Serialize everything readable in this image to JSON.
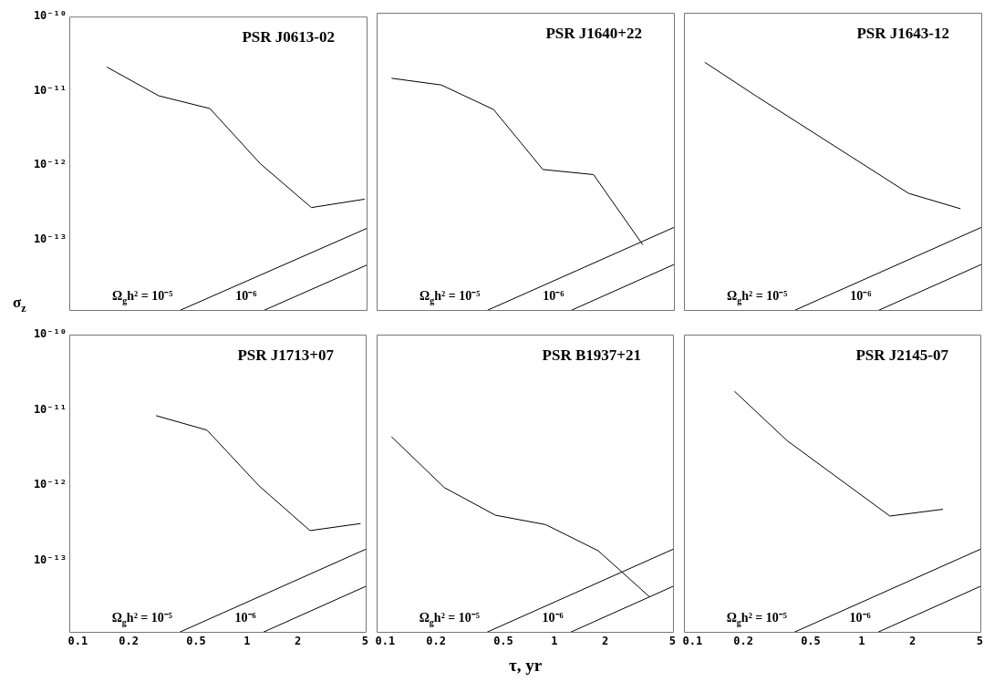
{
  "chart_data": [
    {
      "type": "line",
      "title": "PSR J0613-02",
      "ylabel": "σ$_{z}$",
      "log": "xy",
      "grid": false,
      "marker": "none",
      "line_style": "solid",
      "tick_labels": "y",
      "xlim": [
        0.089,
        5.1
      ],
      "xticks": [
        0.1,
        0.2,
        0.5,
        1,
        2,
        5
      ],
      "ylim": [
        1.1e-14,
        1e-10
      ],
      "yticks": [
        {
          "value": 1e-10,
          "label": "10⁻¹⁰"
        },
        {
          "value": 1e-11,
          "label": "10⁻¹¹"
        },
        {
          "value": 1e-12,
          "label": "10⁻¹²"
        },
        {
          "value": 1e-13,
          "label": "10⁻¹³"
        }
      ],
      "series": [
        {
          "color": "#000000",
          "x": [
            0.148,
            0.3,
            0.6,
            1.19,
            2.38,
            4.9
          ],
          "values": [
            2.1e-11,
            8.6e-12,
            5.8e-12,
            1.05e-12,
            2.7e-13,
            3.5e-13
          ]
        },
        {
          "name": "Ω$_{g}$h² = 10⁻⁵",
          "color": "#000000",
          "x": [
            0.4,
            5.1
          ],
          "values": [
            1.12e-14,
            1.43e-13
          ]
        },
        {
          "name": "10⁻⁶",
          "color": "#000000",
          "x": [
            1.25,
            5.1
          ],
          "values": [
            1.12e-14,
            4.6e-14
          ]
        }
      ]
    },
    {
      "type": "line",
      "title": "PSR J1640+22",
      "log": "xy",
      "grid": false,
      "marker": "none",
      "line_style": "solid",
      "tick_labels": false,
      "xlim": [
        0.089,
        5.1
      ],
      "xticks": [
        0.1,
        0.2,
        0.5,
        1,
        2,
        5
      ],
      "ylim": [
        1.1e-14,
        1e-10
      ],
      "series": [
        {
          "color": "#000000",
          "x": [
            0.109,
            0.214,
            0.435,
            0.85,
            1.69,
            3.3
          ],
          "values": [
            1.35e-11,
            1.1e-11,
            5.2e-12,
            8.3e-13,
            7.1e-13,
            8.3e-14
          ]
        },
        {
          "name": "Ω$_{g}$h² = 10⁻⁵",
          "color": "#000000",
          "x": [
            0.4,
            5.1
          ],
          "values": [
            1.12e-14,
            1.43e-13
          ]
        },
        {
          "name": "10⁻⁶",
          "color": "#000000",
          "x": [
            1.25,
            5.1
          ],
          "values": [
            1.12e-14,
            4.6e-14
          ]
        }
      ]
    },
    {
      "type": "line",
      "title": "PSR J1643-12",
      "log": "xy",
      "grid": false,
      "marker": "none",
      "line_style": "solid",
      "tick_labels": false,
      "xlim": [
        0.089,
        5.1
      ],
      "xticks": [
        0.1,
        0.2,
        0.5,
        1,
        2,
        5
      ],
      "ylim": [
        1.1e-14,
        1e-10
      ],
      "series": [
        {
          "color": "#000000",
          "x": [
            0.118,
            0.238,
            1.88,
            3.8
          ],
          "values": [
            2.2e-11,
            7.8e-12,
            4e-13,
            2.5e-13
          ]
        },
        {
          "name": "Ω$_{g}$h² = 10⁻⁵",
          "color": "#000000",
          "x": [
            0.4,
            5.1
          ],
          "values": [
            1.12e-14,
            1.43e-13
          ]
        },
        {
          "name": "10⁻⁶",
          "color": "#000000",
          "x": [
            1.25,
            5.1
          ],
          "values": [
            1.12e-14,
            4.6e-14
          ]
        }
      ]
    },
    {
      "type": "line",
      "title": "PSR J1713+07",
      "log": "xy",
      "grid": false,
      "marker": "none",
      "line_style": "solid",
      "xlim": [
        0.089,
        5.1
      ],
      "xticks": [
        0.1,
        0.2,
        0.5,
        1,
        2,
        5
      ],
      "ylim": [
        1.1e-14,
        1e-10
      ],
      "yticks": [
        {
          "value": 1e-10,
          "label": "10⁻¹⁰"
        },
        {
          "value": 1e-11,
          "label": "10⁻¹¹"
        },
        {
          "value": 1e-12,
          "label": "10⁻¹²"
        },
        {
          "value": 1e-13,
          "label": "10⁻¹³"
        }
      ],
      "series": [
        {
          "color": "#000000",
          "x": [
            0.29,
            0.58,
            1.18,
            2.36,
            4.7
          ],
          "values": [
            8.4e-12,
            5.4e-12,
            9.8e-13,
            2.5e-13,
            3.1e-13
          ]
        },
        {
          "name": "Ω$_{g}$h² = 10⁻⁵",
          "color": "#000000",
          "x": [
            0.4,
            5.1
          ],
          "values": [
            1.12e-14,
            1.43e-13
          ]
        },
        {
          "name": "10⁻⁶",
          "color": "#000000",
          "x": [
            1.25,
            5.1
          ],
          "values": [
            1.12e-14,
            4.6e-14
          ]
        }
      ]
    },
    {
      "type": "line",
      "title": "PSR B1937+21",
      "xlabel": "τ, yr",
      "log": "xy",
      "grid": false,
      "marker": "none",
      "line_style": "solid",
      "tick_labels": "x",
      "xlim": [
        0.089,
        5.1
      ],
      "xticks": [
        0.1,
        0.2,
        0.5,
        1,
        2,
        5
      ],
      "ylim": [
        1.1e-14,
        1e-10
      ],
      "series": [
        {
          "color": "#000000",
          "x": [
            0.109,
            0.224,
            0.449,
            0.89,
            1.82,
            3.66
          ],
          "values": [
            4.4e-12,
            9.3e-13,
            4e-13,
            3e-13,
            1.35e-13,
            3.3e-14
          ]
        },
        {
          "name": "Ω$_{g}$h² = 10⁻⁵",
          "color": "#000000",
          "x": [
            0.4,
            5.1
          ],
          "values": [
            1.12e-14,
            1.43e-13
          ]
        },
        {
          "name": "10⁻⁶",
          "color": "#000000",
          "x": [
            1.25,
            5.1
          ],
          "values": [
            1.12e-14,
            4.6e-14
          ]
        }
      ]
    },
    {
      "type": "line",
      "title": "PSR J2145-07",
      "log": "xy",
      "grid": false,
      "marker": "none",
      "line_style": "solid",
      "tick_labels": "x",
      "xlim": [
        0.089,
        5.1
      ],
      "xticks": [
        0.1,
        0.2,
        0.5,
        1,
        2,
        5
      ],
      "ylim": [
        1.1e-14,
        1e-10
      ],
      "series": [
        {
          "color": "#000000",
          "x": [
            0.177,
            0.363,
            1.47,
            3.03
          ],
          "values": [
            1.77e-11,
            3.9e-12,
            3.9e-13,
            4.8e-13
          ]
        },
        {
          "name": "Ω$_{g}$h² = 10⁻⁵",
          "color": "#000000",
          "x": [
            0.4,
            5.1
          ],
          "values": [
            1.12e-14,
            1.43e-13
          ]
        },
        {
          "name": "10⁻⁶",
          "color": "#000000",
          "x": [
            1.25,
            5.1
          ],
          "values": [
            1.12e-14,
            4.6e-14
          ]
        }
      ]
    }
  ]
}
